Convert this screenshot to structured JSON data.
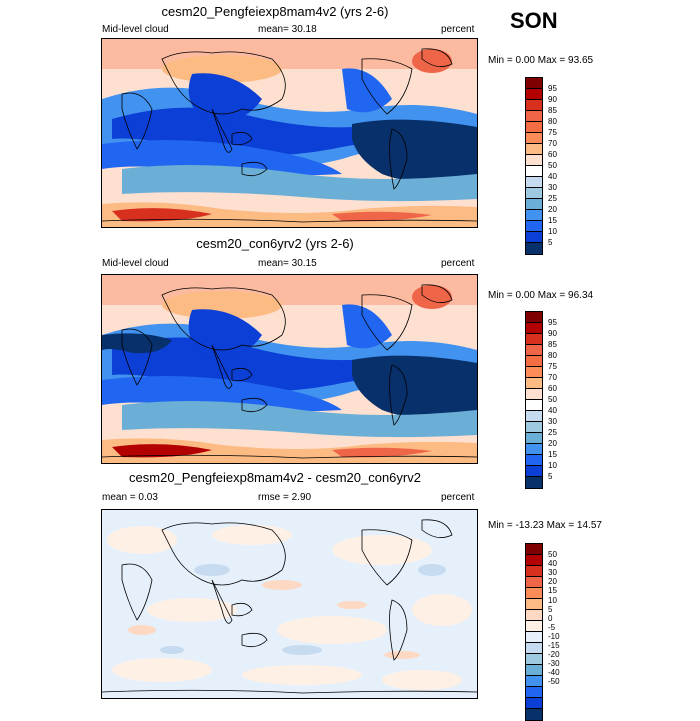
{
  "season": "SON",
  "panels": [
    {
      "title": "cesm20_Pengfeiexp8mam4v2 (yrs 2-6)",
      "left_label": "Mid-level cloud",
      "center_label": "mean=  30.18",
      "right_label": "percent",
      "minmax": "Min =   0.00 Max =  93.65",
      "colorbar": {
        "labels": [
          "95",
          "90",
          "85",
          "80",
          "75",
          "70",
          "60",
          "50",
          "40",
          "30",
          "25",
          "20",
          "15",
          "10",
          "5"
        ],
        "colors": [
          "#7f0000",
          "#b30000",
          "#d7301f",
          "#ef6548",
          "#f46d43",
          "#fc8d59",
          "#fdbb84",
          "#fde0d0",
          "#ffffff",
          "#c6dbef",
          "#9ecae1",
          "#6baed6",
          "#4292f0",
          "#2166f0",
          "#0b3fd6",
          "#08306b"
        ]
      }
    },
    {
      "title": "cesm20_con6yrv2 (yrs 2-6)",
      "left_label": "Mid-level cloud",
      "center_label": "mean=  30.15",
      "right_label": "percent",
      "minmax": "Min =   0.00 Max =  96.34",
      "colorbar": {
        "labels": [
          "95",
          "90",
          "85",
          "80",
          "75",
          "70",
          "60",
          "50",
          "40",
          "30",
          "25",
          "20",
          "15",
          "10",
          "5"
        ],
        "colors": [
          "#7f0000",
          "#b30000",
          "#d7301f",
          "#ef6548",
          "#f46d43",
          "#fc8d59",
          "#fdbb84",
          "#fde0d0",
          "#ffffff",
          "#c6dbef",
          "#9ecae1",
          "#6baed6",
          "#4292f0",
          "#2166f0",
          "#0b3fd6",
          "#08306b"
        ]
      }
    },
    {
      "title": "cesm20_Pengfeiexp8mam4v2 - cesm20_con6yrv2",
      "left_label": "mean =   0.03",
      "center_label": "rmse =   2.90",
      "right_label": "percent",
      "minmax": "Min = -13.23 Max =  14.57",
      "colorbar": {
        "labels": [
          "50",
          "40",
          "30",
          "20",
          "15",
          "10",
          "5",
          "0",
          "-5",
          "-10",
          "-15",
          "-20",
          "-30",
          "-40",
          "-50"
        ],
        "colors": [
          "#7f0000",
          "#b30000",
          "#d7301f",
          "#ef6548",
          "#fc8d59",
          "#fdbb84",
          "#fdd9c4",
          "#fff0e6",
          "#e6f0fb",
          "#c6dbef",
          "#9ecae1",
          "#6baed6",
          "#4292f0",
          "#2166f0",
          "#0b3fd6",
          "#08306b"
        ]
      }
    }
  ]
}
